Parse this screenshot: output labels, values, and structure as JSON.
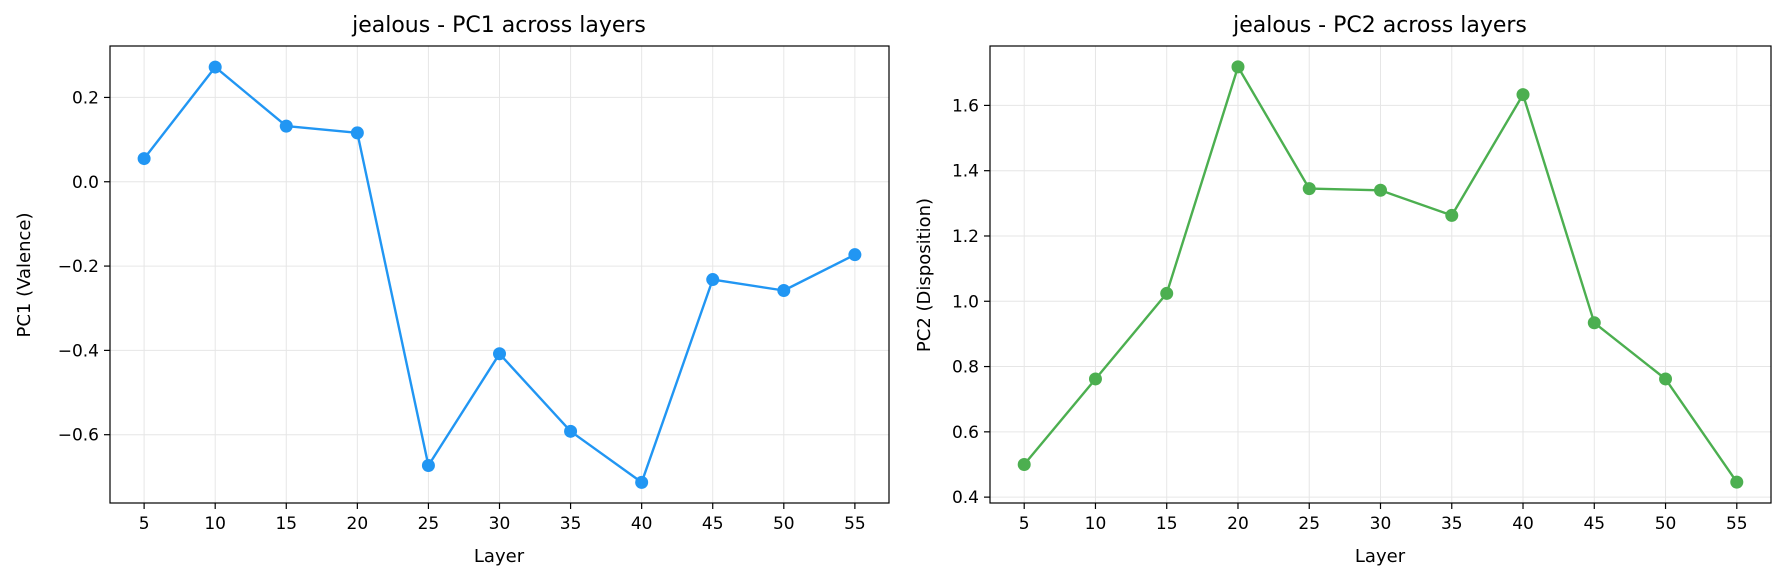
{
  "chart_data": [
    {
      "type": "line",
      "title": "jealous - PC1 across layers",
      "xlabel": "Layer",
      "ylabel": "PC1 (Valence)",
      "x": [
        5,
        10,
        15,
        20,
        25,
        30,
        35,
        40,
        45,
        50,
        55
      ],
      "values": [
        0.055,
        0.272,
        0.132,
        0.116,
        -0.673,
        -0.408,
        -0.592,
        -0.713,
        -0.232,
        -0.258,
        -0.173
      ],
      "xticks": [
        5,
        10,
        15,
        20,
        25,
        30,
        35,
        40,
        45,
        50,
        55
      ],
      "yticks": [
        0.2,
        0.0,
        -0.2,
        -0.4,
        -0.6
      ],
      "ytick_labels": [
        "0.2",
        "0.0",
        "−0.2",
        "−0.4",
        "−0.6"
      ],
      "xlim": [
        2.6,
        57.4
      ],
      "ylim": [
        -0.762,
        0.322
      ],
      "color": "#2196f3",
      "grid": true
    },
    {
      "type": "line",
      "title": "jealous - PC2 across layers",
      "xlabel": "Layer",
      "ylabel": "PC2 (Disposition)",
      "x": [
        5,
        10,
        15,
        20,
        25,
        30,
        35,
        40,
        45,
        50,
        55
      ],
      "values": [
        0.5,
        0.762,
        1.024,
        1.718,
        1.345,
        1.34,
        1.263,
        1.633,
        0.934,
        0.762,
        0.446
      ],
      "xticks": [
        5,
        10,
        15,
        20,
        25,
        30,
        35,
        40,
        45,
        50,
        55
      ],
      "yticks": [
        0.4,
        0.6,
        0.8,
        1.0,
        1.2,
        1.4,
        1.6
      ],
      "ytick_labels": [
        "0.4",
        "0.6",
        "0.8",
        "1.0",
        "1.2",
        "1.4",
        "1.6"
      ],
      "xlim": [
        2.6,
        57.4
      ],
      "ylim": [
        0.382,
        1.782
      ],
      "color": "#4caf50",
      "grid": true
    }
  ]
}
